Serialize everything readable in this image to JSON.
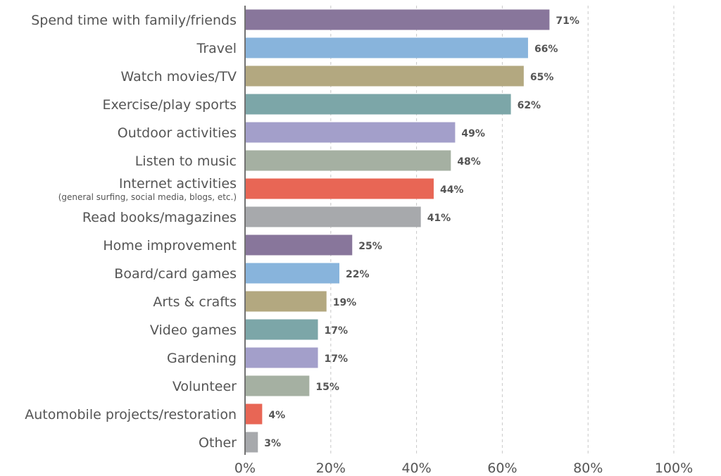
{
  "chart_data": {
    "type": "bar",
    "orientation": "horizontal",
    "categories": [
      "Spend time with family/friends",
      "Travel",
      "Watch movies/TV",
      "Exercise/play sports",
      "Outdoor activities",
      "Listen to music",
      "Internet activities",
      "Read books/magazines",
      "Home improvement",
      "Board/card games",
      "Arts & crafts",
      "Video games",
      "Gardening",
      "Volunteer",
      "Automobile projects/restoration",
      "Other"
    ],
    "category_sublabels": {
      "6": "(general surfing, social media, blogs, etc.)"
    },
    "values": [
      71,
      66,
      65,
      62,
      49,
      48,
      44,
      41,
      25,
      22,
      19,
      17,
      17,
      15,
      4,
      3
    ],
    "value_labels": [
      "71%",
      "66%",
      "65%",
      "62%",
      "49%",
      "48%",
      "44%",
      "41%",
      "25%",
      "22%",
      "19%",
      "17%",
      "17%",
      "15%",
      "4%",
      "3%"
    ],
    "bar_colors": [
      "#88769b",
      "#88b4dc",
      "#b3a880",
      "#7ca6a8",
      "#a39fca",
      "#a5b0a2",
      "#e86655",
      "#a7a9ac",
      "#88769b",
      "#88b4dc",
      "#b3a880",
      "#7ca6a8",
      "#a39fca",
      "#a5b0a2",
      "#e86655",
      "#a7a9ac"
    ],
    "xlim": [
      0,
      100
    ],
    "xticks": [
      0,
      20,
      40,
      60,
      80,
      100
    ],
    "xtick_labels": [
      "0%",
      "20%",
      "40%",
      "60%",
      "80%",
      "100%"
    ],
    "grid": "vertical dashed",
    "legend": "none"
  }
}
